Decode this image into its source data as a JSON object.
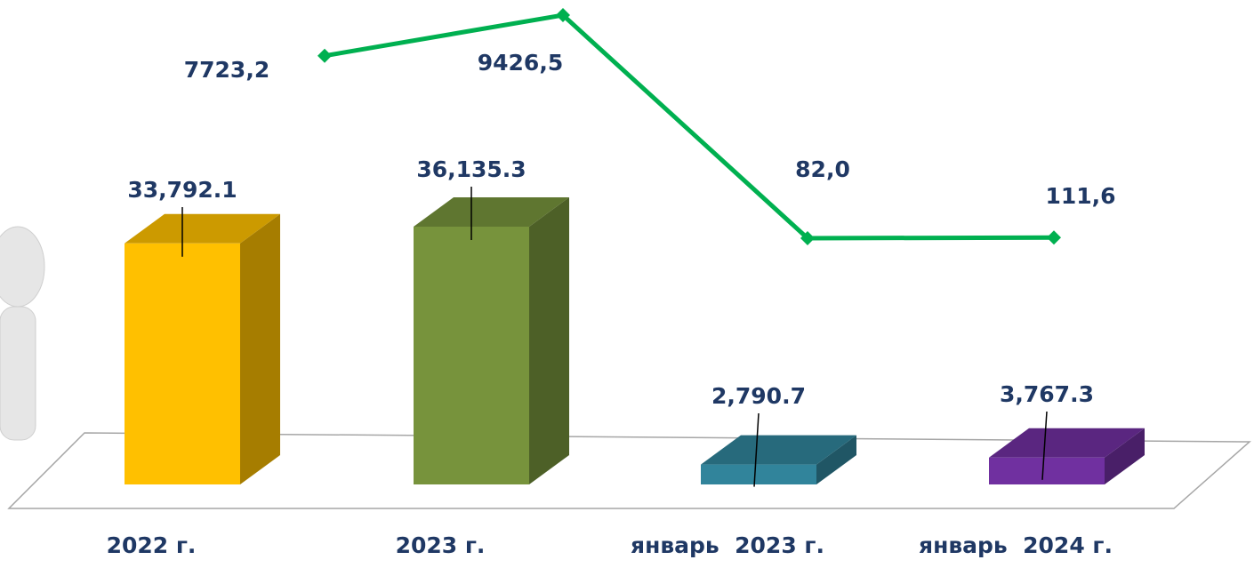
{
  "chart_data": [
    {
      "type": "bar",
      "categories": [
        "2022 г.",
        "2023 г.",
        "январь  2023 г.",
        "январь  2024 г."
      ],
      "values": [
        33792.1,
        36135.3,
        2790.7,
        3767.3
      ],
      "value_labels": [
        "33,792.1",
        "36,135.3",
        "2,790.7",
        "3,767.3"
      ],
      "colors": [
        "#ffc000",
        "#77933c",
        "#31849b",
        "#7030a0"
      ]
    },
    {
      "type": "line",
      "values": [
        7723.2,
        9426.5,
        82.0,
        111.6
      ],
      "value_labels": [
        "7723,2",
        "9426,5",
        "82,0",
        "111,6"
      ],
      "color": "#00b050"
    }
  ]
}
